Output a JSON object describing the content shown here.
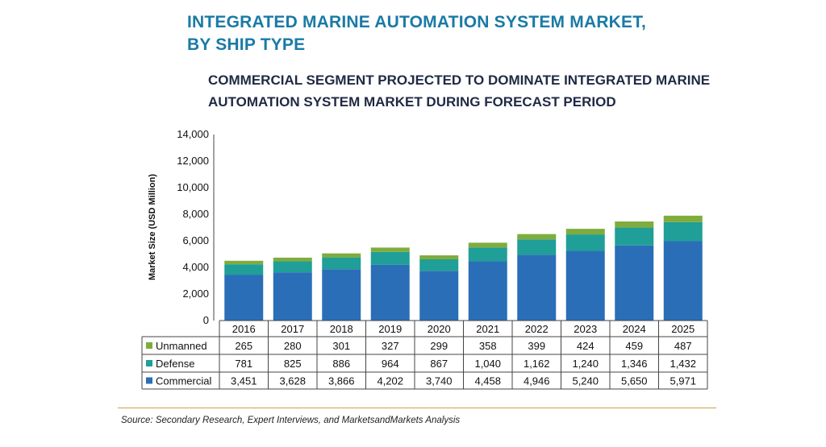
{
  "header": {
    "title_line1": "INTEGRATED MARINE AUTOMATION SYSTEM MARKET,",
    "title_line2": "BY SHIP TYPE",
    "subtitle_line1": "COMMERCIAL SEGMENT PROJECTED TO DOMINATE INTEGRATED MARINE",
    "subtitle_line2": "AUTOMATION SYSTEM MARKET DURING FORECAST PERIOD"
  },
  "footer": {
    "source": "Source: Secondary Research, Expert Interviews, and MarketsandMarkets Analysis"
  },
  "colors": {
    "commercial": "#2a6eb7",
    "defense": "#1f9f97",
    "unmanned": "#7fac3d",
    "title": "#1a7aa6",
    "subtitle": "#1f2a44",
    "rule": "#c9a447"
  },
  "chart_data": {
    "type": "bar",
    "stacked": true,
    "ylabel": "Market Size (USD Million)",
    "ylim": [
      0,
      14000
    ],
    "yticks": [
      "0",
      "2,000",
      "4,000",
      "6,000",
      "8,000",
      "10,000",
      "12,000",
      "14,000"
    ],
    "categories": [
      "2016",
      "2017",
      "2018",
      "2019",
      "2020",
      "2021",
      "2022",
      "2023",
      "2024",
      "2025"
    ],
    "series": [
      {
        "name": "Commercial",
        "values": [
          3451,
          3628,
          3866,
          4202,
          3740,
          4458,
          4946,
          5240,
          5650,
          5971
        ],
        "labels": [
          "3,451",
          "3,628",
          "3,866",
          "4,202",
          "3,740",
          "4,458",
          "4,946",
          "5,240",
          "5,650",
          "5,971"
        ]
      },
      {
        "name": "Defense",
        "values": [
          781,
          825,
          886,
          964,
          867,
          1040,
          1162,
          1240,
          1346,
          1432
        ],
        "labels": [
          "781",
          "825",
          "886",
          "964",
          "867",
          "1,040",
          "1,162",
          "1,240",
          "1,346",
          "1,432"
        ]
      },
      {
        "name": "Unmanned",
        "values": [
          265,
          280,
          301,
          327,
          299,
          358,
          399,
          424,
          459,
          487
        ],
        "labels": [
          "265",
          "280",
          "301",
          "327",
          "299",
          "358",
          "399",
          "424",
          "459",
          "487"
        ]
      }
    ],
    "table_row_order": [
      "Unmanned",
      "Defense",
      "Commercial"
    ],
    "grid": false,
    "legend": "data table rows below chart"
  }
}
